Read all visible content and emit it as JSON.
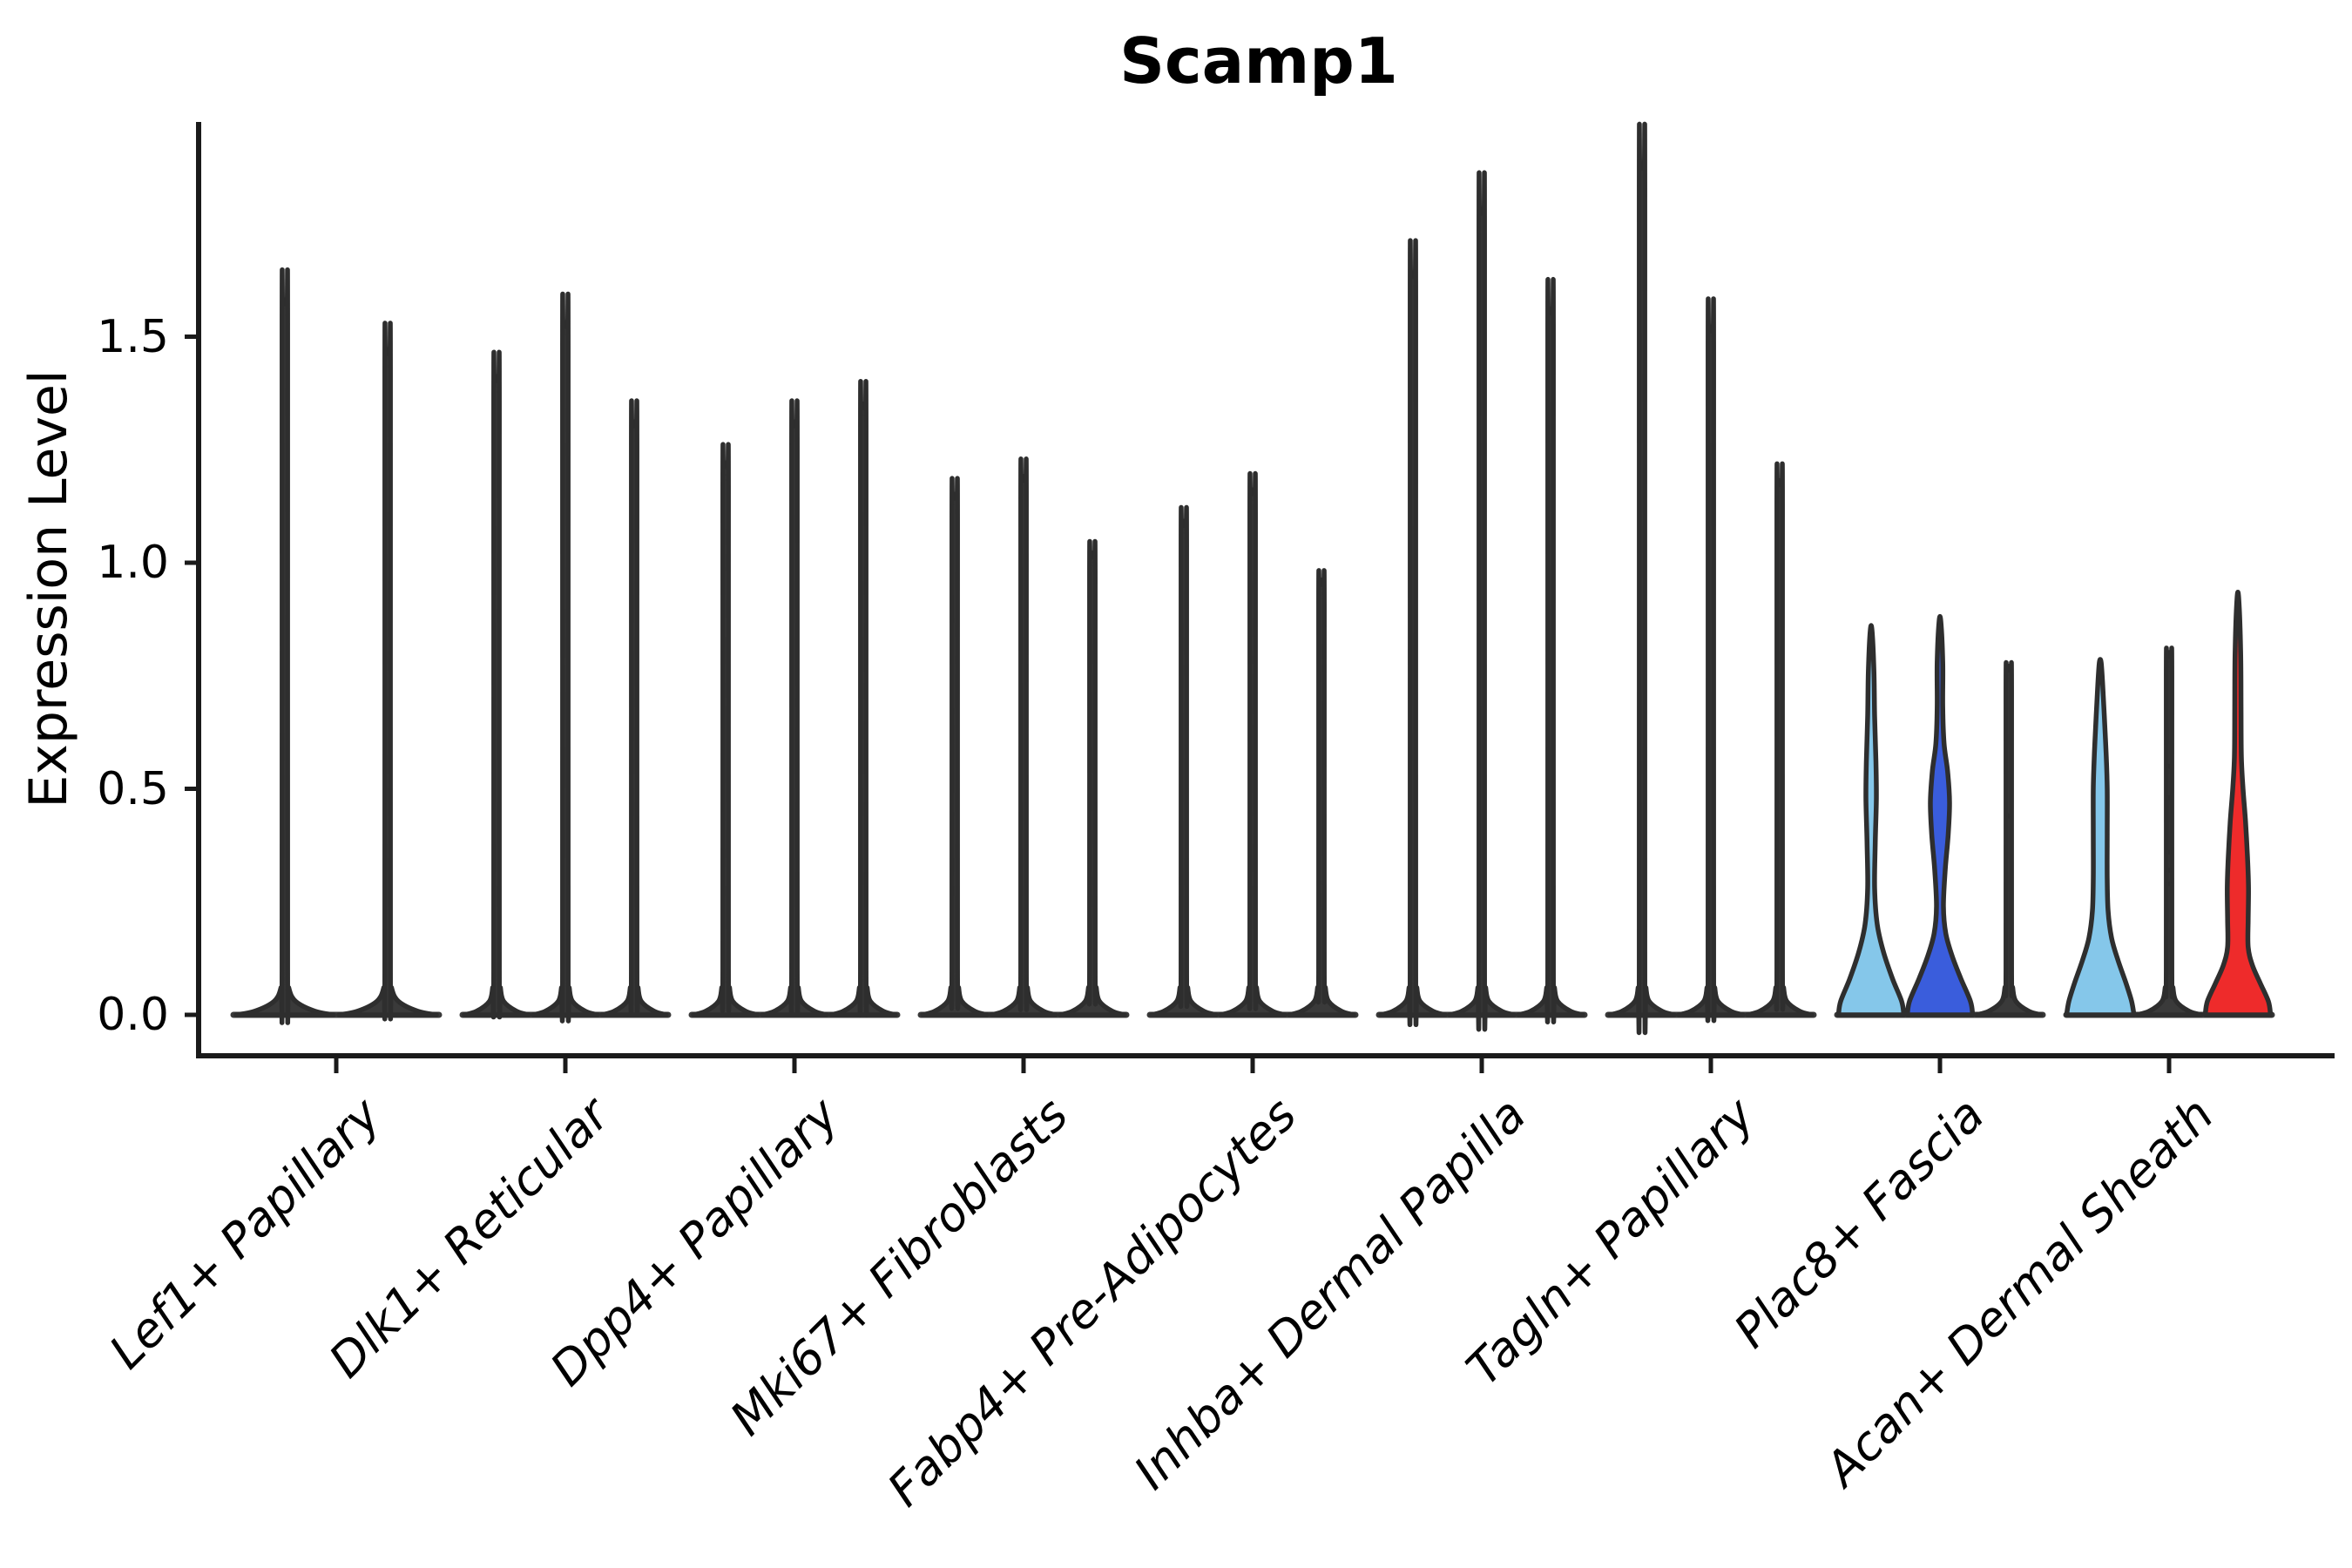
{
  "figure": {
    "title": "Scamp1"
  },
  "chart_data": {
    "type": "violin",
    "title": "Scamp1",
    "xlabel": "",
    "ylabel": "Expression Level",
    "ytick_labels": [
      "0.0",
      "0.5",
      "1.0",
      "1.5"
    ],
    "ytick_values": [
      0,
      0.5,
      1.0,
      1.5
    ],
    "ylim": [
      0,
      1.98
    ],
    "grid": false,
    "legend": "none",
    "colors": {
      "light_blue": "#85C7EA",
      "dark_blue": "#3A5DDC",
      "red": "#EE2B2B",
      "spike_fill": "#3a3a3a",
      "outline": "#2e2e2e",
      "axis": "#1a1a1a"
    },
    "categories": [
      {
        "label": "Lef1+ Papillary",
        "violins": [
          {
            "split": "light_blue",
            "style": "spike",
            "max": 1.58
          },
          {
            "split": "dark_blue",
            "style": "spike",
            "max": 1.47
          }
        ]
      },
      {
        "label": "Dlk1+ Reticular",
        "violins": [
          {
            "split": "light_blue",
            "style": "spike",
            "max": 1.41
          },
          {
            "split": "dark_blue",
            "style": "spike",
            "max": 1.53
          },
          {
            "split": "red",
            "style": "spike",
            "max": 1.31
          }
        ]
      },
      {
        "label": "Dpp4+ Papillary",
        "violins": [
          {
            "split": "light_blue",
            "style": "spike",
            "max": 1.22
          },
          {
            "split": "dark_blue",
            "style": "spike",
            "max": 1.31
          },
          {
            "split": "red",
            "style": "spike",
            "max": 1.35
          }
        ]
      },
      {
        "label": "Mki67+ Fibroblasts",
        "violins": [
          {
            "split": "light_blue",
            "style": "spike",
            "max": 1.15
          },
          {
            "split": "dark_blue",
            "style": "spike",
            "max": 1.19
          },
          {
            "split": "red",
            "style": "spike",
            "max": 1.02
          }
        ]
      },
      {
        "label": "Fabp4+ Pre-Adipocytes",
        "violins": [
          {
            "split": "light_blue",
            "style": "spike",
            "max": 1.09
          },
          {
            "split": "dark_blue",
            "style": "spike",
            "max": 1.16
          },
          {
            "split": "red",
            "style": "spike",
            "max": 0.96
          }
        ]
      },
      {
        "label": "Inhba+ Dermal Papilla",
        "violins": [
          {
            "split": "light_blue",
            "style": "spike",
            "max": 1.64
          },
          {
            "split": "dark_blue",
            "style": "spike",
            "max": 1.78
          },
          {
            "split": "red",
            "style": "spike",
            "max": 1.56
          }
        ]
      },
      {
        "label": "Tagln+ Papillary",
        "violins": [
          {
            "split": "light_blue",
            "style": "spike",
            "max": 1.88
          },
          {
            "split": "dark_blue",
            "style": "spike",
            "max": 1.52
          },
          {
            "split": "red",
            "style": "spike",
            "max": 1.18
          }
        ]
      },
      {
        "label": "Plac8+ Fascia",
        "violins": [
          {
            "split": "light_blue",
            "style": "filled",
            "max": 0.85,
            "profile": [
              [
                0,
                37.5
              ],
              [
                0.03,
                35
              ],
              [
                0.08,
                24.5
              ],
              [
                0.14,
                14
              ],
              [
                0.2,
                7
              ],
              [
                0.28,
                4
              ],
              [
                0.38,
                4.7
              ],
              [
                0.48,
                6
              ],
              [
                0.56,
                5.5
              ],
              [
                0.66,
                4
              ],
              [
                0.76,
                3.2
              ],
              [
                0.85,
                1
              ]
            ]
          },
          {
            "split": "dark_blue",
            "style": "filled",
            "max": 0.87,
            "profile": [
              [
                0,
                37.5
              ],
              [
                0.03,
                35
              ],
              [
                0.08,
                24
              ],
              [
                0.13,
                14
              ],
              [
                0.18,
                6.7
              ],
              [
                0.24,
                4
              ],
              [
                0.32,
                6
              ],
              [
                0.4,
                9.5
              ],
              [
                0.47,
                11
              ],
              [
                0.54,
                8.7
              ],
              [
                0.6,
                4.7
              ],
              [
                0.68,
                3.2
              ],
              [
                0.78,
                3.2
              ],
              [
                0.87,
                1
              ]
            ]
          },
          {
            "split": "red",
            "style": "spike",
            "max": 0.77,
            "dots": [
              0.44
            ]
          }
        ]
      },
      {
        "label": "Acan+ Dermal Sheath",
        "violins": [
          {
            "split": "light_blue",
            "style": "filled",
            "max": 0.78,
            "profile": [
              [
                0,
                38.7
              ],
              [
                0.03,
                36
              ],
              [
                0.07,
                29.6
              ],
              [
                0.12,
                20.5
              ],
              [
                0.17,
                13
              ],
              [
                0.23,
                9
              ],
              [
                0.3,
                8
              ],
              [
                0.4,
                8
              ],
              [
                0.5,
                8
              ],
              [
                0.58,
                6.7
              ],
              [
                0.66,
                4.7
              ],
              [
                0.73,
                2.8
              ],
              [
                0.78,
                1
              ]
            ]
          },
          {
            "split": "dark_blue",
            "style": "spike",
            "max": 0.8,
            "dots": [
              0.55,
              0.48,
              0.36,
              0.32,
              0.29
            ]
          },
          {
            "split": "red",
            "style": "filled",
            "max": 0.92,
            "profile": [
              [
                0,
                37.5
              ],
              [
                0.03,
                35
              ],
              [
                0.07,
                25.7
              ],
              [
                0.11,
                16.6
              ],
              [
                0.15,
                11.8
              ],
              [
                0.21,
                11.8
              ],
              [
                0.28,
                12.2
              ],
              [
                0.35,
                11
              ],
              [
                0.43,
                8.7
              ],
              [
                0.5,
                5.9
              ],
              [
                0.57,
                4
              ],
              [
                0.68,
                3.6
              ],
              [
                0.8,
                3.2
              ],
              [
                0.92,
                1
              ]
            ]
          }
        ]
      }
    ]
  }
}
